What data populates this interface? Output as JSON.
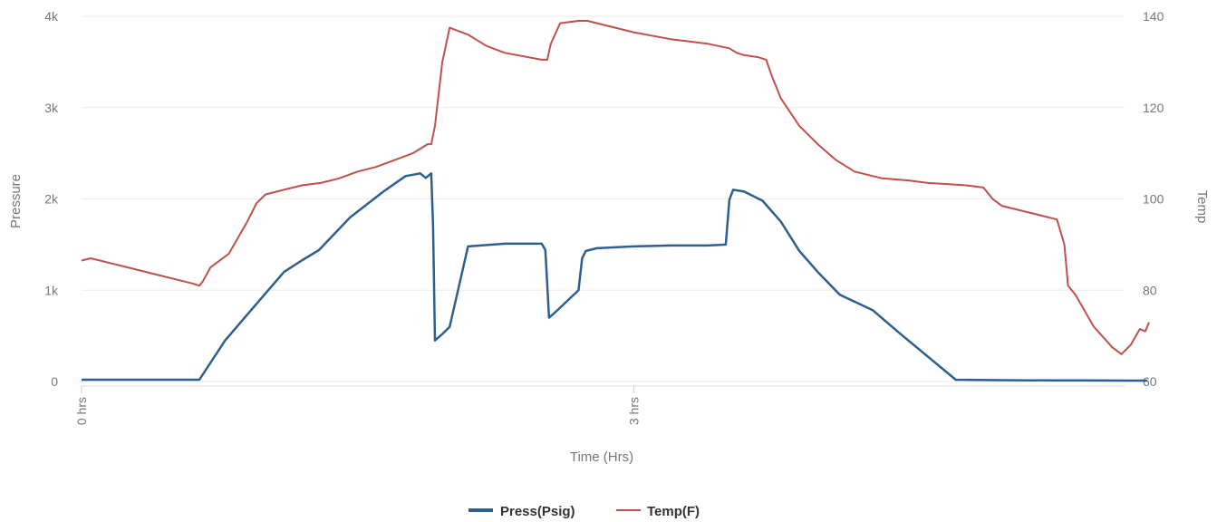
{
  "chart_data": {
    "type": "line",
    "xlabel": "Time (Hrs)",
    "ylabel_left": "Pressure",
    "ylabel_right": "Temp",
    "x_unit": "hrs",
    "xlim": [
      0,
      5.8
    ],
    "x_ticks": [
      {
        "value": 0,
        "label": "0 hrs"
      },
      {
        "value": 3,
        "label": "3 hrs"
      }
    ],
    "ylim_left": [
      0,
      4000
    ],
    "y_ticks_left": [
      {
        "value": 0,
        "label": "0"
      },
      {
        "value": 1000,
        "label": "1k"
      },
      {
        "value": 2000,
        "label": "2k"
      },
      {
        "value": 3000,
        "label": "3k"
      },
      {
        "value": 4000,
        "label": "4k"
      }
    ],
    "ylim_right": [
      60,
      140
    ],
    "y_ticks_right": [
      {
        "value": 60,
        "label": "60"
      },
      {
        "value": 80,
        "label": "80"
      },
      {
        "value": 100,
        "label": "100"
      },
      {
        "value": 120,
        "label": "120"
      },
      {
        "value": 140,
        "label": "140"
      }
    ],
    "grid": true,
    "legend_position": "bottom-center",
    "series": [
      {
        "name": "Press(Psig)",
        "axis": "left",
        "color": "#2e5f91",
        "x": [
          0,
          0.64,
          0.78,
          0.92,
          1.1,
          1.2,
          1.29,
          1.46,
          1.64,
          1.76,
          1.84,
          1.87,
          1.9,
          1.91,
          1.92,
          1.96,
          2.0,
          2.1,
          2.3,
          2.5,
          2.52,
          2.54,
          2.58,
          2.7,
          2.72,
          2.74,
          2.8,
          3.0,
          3.2,
          3.4,
          3.5,
          3.52,
          3.54,
          3.6,
          3.7,
          3.8,
          3.9,
          4.0,
          4.12,
          4.3,
          4.45,
          4.6,
          4.75,
          5.0,
          5.3,
          5.45,
          5.7,
          5.79
        ],
        "y": [
          20,
          20,
          450,
          780,
          1200,
          1330,
          1440,
          1800,
          2080,
          2250,
          2280,
          2230,
          2280,
          1700,
          450,
          520,
          600,
          1480,
          1510,
          1510,
          1440,
          700,
          770,
          1000,
          1350,
          1430,
          1460,
          1480,
          1490,
          1490,
          1500,
          1990,
          2100,
          2080,
          1980,
          1750,
          1430,
          1200,
          950,
          780,
          520,
          270,
          20,
          15,
          12,
          12,
          10,
          10
        ]
      },
      {
        "name": "Temp(F)",
        "axis": "right",
        "color": "#c0504d",
        "x": [
          0,
          0.05,
          0.1,
          0.2,
          0.4,
          0.6,
          0.64,
          0.66,
          0.7,
          0.8,
          0.9,
          0.95,
          1.0,
          1.1,
          1.2,
          1.3,
          1.4,
          1.5,
          1.6,
          1.7,
          1.8,
          1.88,
          1.9,
          1.92,
          1.96,
          2.0,
          2.1,
          2.2,
          2.3,
          2.5,
          2.53,
          2.55,
          2.6,
          2.7,
          2.75,
          2.8,
          2.9,
          3.0,
          3.2,
          3.4,
          3.52,
          3.56,
          3.6,
          3.68,
          3.72,
          3.75,
          3.8,
          3.9,
          4.0,
          4.1,
          4.2,
          4.35,
          4.5,
          4.6,
          4.8,
          4.9,
          4.95,
          5.0,
          5.1,
          5.2,
          5.3,
          5.34,
          5.36,
          5.4,
          5.5,
          5.6,
          5.65,
          5.7,
          5.75,
          5.78,
          5.8
        ],
        "y": [
          86.5,
          87,
          86.5,
          85.5,
          83.5,
          81.5,
          81,
          82,
          85,
          88,
          95,
          99,
          101,
          102,
          103,
          103.5,
          104.5,
          106,
          107,
          108.5,
          110,
          112,
          112,
          116,
          130,
          137.5,
          136,
          133.5,
          132,
          130.5,
          130.5,
          134,
          138.5,
          139,
          139,
          138.5,
          137.5,
          136.5,
          135,
          134,
          133,
          132,
          131.5,
          131,
          130.5,
          127,
          122,
          116,
          112,
          108.5,
          106,
          104.5,
          104,
          103.5,
          103,
          102.5,
          100,
          98.5,
          97.5,
          96.5,
          95.5,
          90,
          81,
          79,
          72,
          67.5,
          66,
          68,
          71.5,
          71,
          73
        ]
      }
    ]
  }
}
